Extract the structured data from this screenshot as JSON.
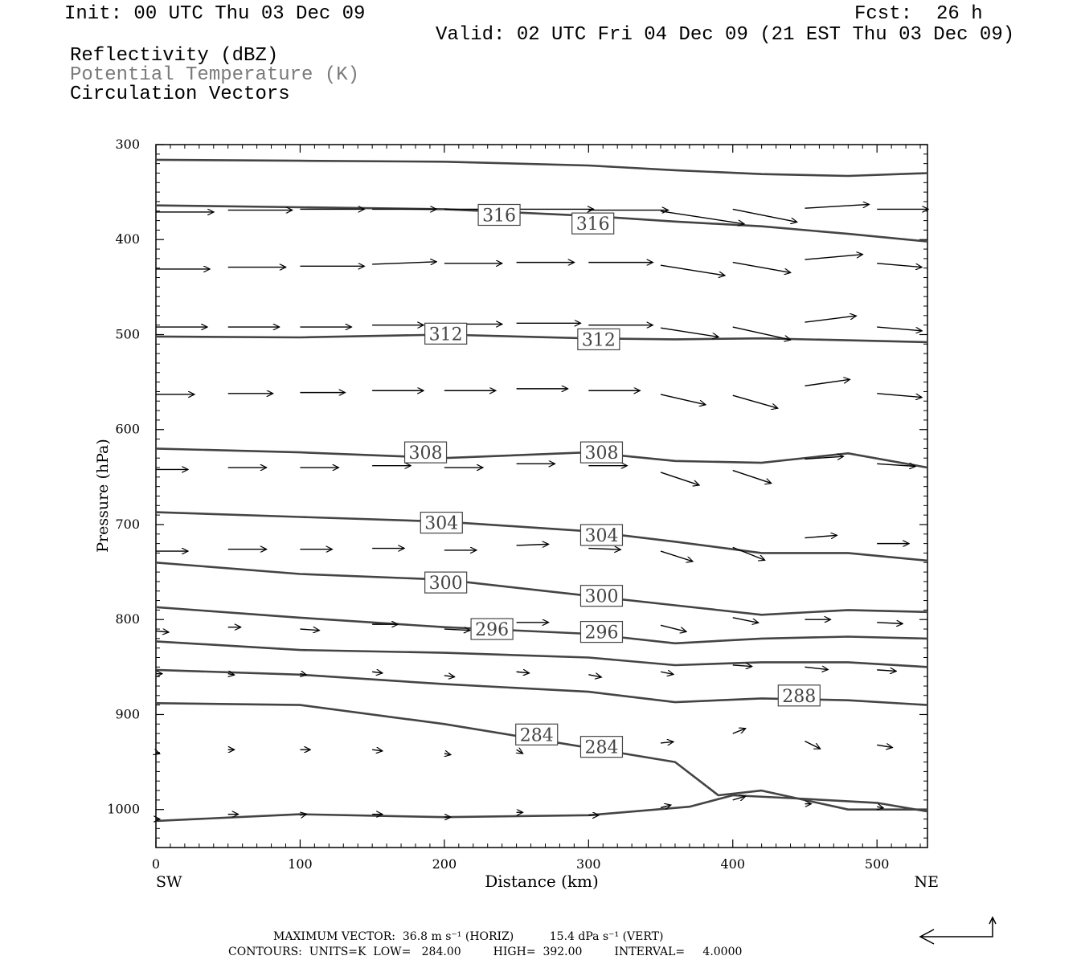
{
  "header": {
    "init": "Init: 00 UTC Thu 03 Dec 09",
    "fcst_label": "Fcst:",
    "fcst_value": "26 h",
    "valid": "Valid: 02 UTC Fri 04 Dec 09 (21 EST Thu 03 Dec 09)",
    "fields": [
      {
        "text": "Reflectivity (dBZ)",
        "color": "#000000"
      },
      {
        "text": "Potential Temperature (K)",
        "color": "#7a7a7a"
      },
      {
        "text": "Circulation Vectors",
        "color": "#000000"
      }
    ]
  },
  "chart_data": {
    "type": "line",
    "title": "",
    "xlabel": "Distance (km)",
    "ylabel": "Pressure (hPa)",
    "xlim": [
      0,
      535
    ],
    "ylim": [
      1040,
      300
    ],
    "y_scale": "linear",
    "grid": false,
    "x_ticks": [
      0,
      100,
      200,
      300,
      400,
      500
    ],
    "y_ticks": [
      300,
      400,
      500,
      600,
      700,
      800,
      900,
      1000
    ],
    "x_tick_labels": [
      "0",
      "100",
      "200",
      "300",
      "400",
      "500"
    ],
    "y_tick_labels": [
      "300",
      "400",
      "500",
      "600",
      "700",
      "800",
      "900",
      "1000"
    ],
    "x_end_labels": {
      "left": "SW",
      "right": "NE"
    },
    "series": [
      {
        "name": "theta",
        "color": "#444444",
        "x": [
          0,
          100,
          200,
          300,
          360,
          420,
          480,
          535
        ],
        "y": [
          316,
          317,
          318,
          322,
          327,
          331,
          333,
          330
        ]
      },
      {
        "name": "theta",
        "color": "#444444",
        "x": [
          0,
          100,
          200,
          300,
          360,
          420,
          480,
          535
        ],
        "y": [
          364,
          366,
          368,
          375,
          381,
          386,
          394,
          402
        ]
      },
      {
        "name": "theta",
        "color": "#444444",
        "x": [
          0,
          100,
          200,
          300,
          360,
          420,
          480,
          535
        ],
        "y": [
          502,
          503,
          500,
          504,
          505,
          504,
          506,
          508
        ]
      },
      {
        "name": "theta",
        "color": "#444444",
        "x": [
          0,
          100,
          200,
          300,
          360,
          420,
          480,
          535
        ],
        "y": [
          620,
          624,
          630,
          624,
          633,
          635,
          625,
          640
        ]
      },
      {
        "name": "theta",
        "color": "#444444",
        "x": [
          0,
          100,
          200,
          300,
          360,
          420,
          480,
          535
        ],
        "y": [
          687,
          692,
          697,
          707,
          718,
          730,
          730,
          738
        ]
      },
      {
        "name": "theta",
        "color": "#444444",
        "x": [
          0,
          100,
          200,
          300,
          360,
          420,
          480,
          535
        ],
        "y": [
          740,
          752,
          758,
          775,
          785,
          795,
          790,
          792
        ]
      },
      {
        "name": "theta",
        "color": "#444444",
        "x": [
          0,
          100,
          200,
          300,
          360,
          420,
          480,
          535
        ],
        "y": [
          787,
          798,
          808,
          815,
          825,
          820,
          818,
          820
        ]
      },
      {
        "name": "theta",
        "color": "#444444",
        "x": [
          0,
          100,
          200,
          300,
          360,
          420,
          480,
          535
        ],
        "y": [
          823,
          832,
          835,
          840,
          848,
          845,
          845,
          850
        ]
      },
      {
        "name": "theta",
        "color": "#444444",
        "x": [
          0,
          100,
          200,
          300,
          360,
          420,
          480,
          535
        ],
        "y": [
          853,
          858,
          868,
          876,
          887,
          883,
          885,
          890
        ]
      },
      {
        "name": "theta",
        "color": "#444444",
        "x": [
          0,
          100,
          200,
          300,
          360,
          390,
          420,
          480,
          535
        ],
        "y": [
          888,
          890,
          910,
          935,
          950,
          985,
          980,
          1000,
          1000
        ]
      },
      {
        "name": "theta",
        "color": "#444444",
        "x": [
          0,
          100,
          200,
          300,
          370,
          400,
          440,
          500,
          535
        ],
        "y": [
          1012,
          1005,
          1008,
          1006,
          997,
          985,
          988,
          993,
          1002
        ]
      }
    ],
    "contour_labels": [
      {
        "text": "316",
        "x": 238,
        "y": 374
      },
      {
        "text": "316",
        "x": 303,
        "y": 383
      },
      {
        "text": "312",
        "x": 201,
        "y": 499
      },
      {
        "text": "312",
        "x": 307,
        "y": 505
      },
      {
        "text": "308",
        "x": 187,
        "y": 624
      },
      {
        "text": "308",
        "x": 309,
        "y": 624
      },
      {
        "text": "304",
        "x": 198,
        "y": 698
      },
      {
        "text": "304",
        "x": 309,
        "y": 711
      },
      {
        "text": "300",
        "x": 201,
        "y": 761
      },
      {
        "text": "300",
        "x": 309,
        "y": 775
      },
      {
        "text": "296",
        "x": 233,
        "y": 810
      },
      {
        "text": "296",
        "x": 309,
        "y": 813
      },
      {
        "text": "288",
        "x": 446,
        "y": 880
      },
      {
        "text": "284",
        "x": 264,
        "y": 921
      },
      {
        "text": "284",
        "x": 309,
        "y": 934
      }
    ],
    "vectors": [
      {
        "x": 0,
        "y": 371,
        "u": 45,
        "w": 0
      },
      {
        "x": 50,
        "y": 369,
        "u": 50,
        "w": 0
      },
      {
        "x": 100,
        "y": 368,
        "u": 50,
        "w": 0
      },
      {
        "x": 150,
        "y": 368,
        "u": 50,
        "w": 0
      },
      {
        "x": 200,
        "y": 368,
        "u": 55,
        "w": 0
      },
      {
        "x": 250,
        "y": 368,
        "u": 60,
        "w": 0
      },
      {
        "x": 300,
        "y": 369,
        "u": 62,
        "w": 0
      },
      {
        "x": 350,
        "y": 370,
        "u": 65,
        "w": -10
      },
      {
        "x": 400,
        "y": 368,
        "u": 50,
        "w": -10
      },
      {
        "x": 450,
        "y": 367,
        "u": 50,
        "w": 3
      },
      {
        "x": 500,
        "y": 368,
        "u": 40,
        "w": 0
      },
      {
        "x": 0,
        "y": 431,
        "u": 42,
        "w": 0
      },
      {
        "x": 50,
        "y": 429,
        "u": 45,
        "w": 0
      },
      {
        "x": 100,
        "y": 428,
        "u": 50,
        "w": 0
      },
      {
        "x": 150,
        "y": 426,
        "u": 50,
        "w": 2
      },
      {
        "x": 200,
        "y": 425,
        "u": 45,
        "w": 0
      },
      {
        "x": 250,
        "y": 424,
        "u": 45,
        "w": 0
      },
      {
        "x": 300,
        "y": 424,
        "u": 50,
        "w": 0
      },
      {
        "x": 350,
        "y": 427,
        "u": 50,
        "w": -8
      },
      {
        "x": 400,
        "y": 424,
        "u": 45,
        "w": -8
      },
      {
        "x": 450,
        "y": 421,
        "u": 45,
        "w": 4
      },
      {
        "x": 500,
        "y": 425,
        "u": 35,
        "w": -3
      },
      {
        "x": 0,
        "y": 492,
        "u": 40,
        "w": 0
      },
      {
        "x": 50,
        "y": 492,
        "u": 40,
        "w": 0
      },
      {
        "x": 100,
        "y": 492,
        "u": 40,
        "w": 0
      },
      {
        "x": 150,
        "y": 490,
        "u": 40,
        "w": 0
      },
      {
        "x": 200,
        "y": 489,
        "u": 45,
        "w": 0
      },
      {
        "x": 250,
        "y": 488,
        "u": 50,
        "w": 0
      },
      {
        "x": 300,
        "y": 490,
        "u": 50,
        "w": 0
      },
      {
        "x": 350,
        "y": 493,
        "u": 45,
        "w": -7
      },
      {
        "x": 400,
        "y": 492,
        "u": 45,
        "w": -10
      },
      {
        "x": 450,
        "y": 487,
        "u": 40,
        "w": 5
      },
      {
        "x": 500,
        "y": 492,
        "u": 35,
        "w": -3
      },
      {
        "x": 0,
        "y": 563,
        "u": 30,
        "w": 0
      },
      {
        "x": 50,
        "y": 562,
        "u": 35,
        "w": 0
      },
      {
        "x": 100,
        "y": 561,
        "u": 35,
        "w": 0
      },
      {
        "x": 150,
        "y": 559,
        "u": 40,
        "w": 0
      },
      {
        "x": 200,
        "y": 559,
        "u": 40,
        "w": 0
      },
      {
        "x": 250,
        "y": 557,
        "u": 40,
        "w": 0
      },
      {
        "x": 300,
        "y": 559,
        "u": 40,
        "w": 0
      },
      {
        "x": 350,
        "y": 563,
        "u": 35,
        "w": -8
      },
      {
        "x": 400,
        "y": 564,
        "u": 35,
        "w": -10
      },
      {
        "x": 450,
        "y": 554,
        "u": 35,
        "w": 5
      },
      {
        "x": 500,
        "y": 562,
        "u": 35,
        "w": -3
      },
      {
        "x": 0,
        "y": 642,
        "u": 25,
        "w": 0
      },
      {
        "x": 50,
        "y": 640,
        "u": 30,
        "w": 0
      },
      {
        "x": 100,
        "y": 640,
        "u": 30,
        "w": 0
      },
      {
        "x": 150,
        "y": 638,
        "u": 30,
        "w": 0
      },
      {
        "x": 200,
        "y": 640,
        "u": 30,
        "w": 0
      },
      {
        "x": 250,
        "y": 636,
        "u": 30,
        "w": 0
      },
      {
        "x": 300,
        "y": 638,
        "u": 30,
        "w": 0
      },
      {
        "x": 350,
        "y": 645,
        "u": 30,
        "w": -10
      },
      {
        "x": 400,
        "y": 643,
        "u": 30,
        "w": -10
      },
      {
        "x": 450,
        "y": 631,
        "u": 30,
        "w": 2
      },
      {
        "x": 500,
        "y": 636,
        "u": 30,
        "w": -2
      },
      {
        "x": 0,
        "y": 728,
        "u": 25,
        "w": 0
      },
      {
        "x": 50,
        "y": 726,
        "u": 30,
        "w": 0
      },
      {
        "x": 100,
        "y": 726,
        "u": 25,
        "w": 0
      },
      {
        "x": 150,
        "y": 725,
        "u": 25,
        "w": 0
      },
      {
        "x": 200,
        "y": 727,
        "u": 25,
        "w": 0
      },
      {
        "x": 250,
        "y": 722,
        "u": 25,
        "w": 1
      },
      {
        "x": 300,
        "y": 725,
        "u": 25,
        "w": -1
      },
      {
        "x": 350,
        "y": 728,
        "u": 25,
        "w": -8
      },
      {
        "x": 400,
        "y": 724,
        "u": 25,
        "w": -10
      },
      {
        "x": 450,
        "y": 714,
        "u": 25,
        "w": 2
      },
      {
        "x": 500,
        "y": 720,
        "u": 25,
        "w": 0
      },
      {
        "x": 0,
        "y": 812,
        "u": 10,
        "w": -1
      },
      {
        "x": 50,
        "y": 808,
        "u": 10,
        "w": 0
      },
      {
        "x": 100,
        "y": 810,
        "u": 15,
        "w": -1
      },
      {
        "x": 150,
        "y": 805,
        "u": 20,
        "w": 0
      },
      {
        "x": 200,
        "y": 810,
        "u": 20,
        "w": -1
      },
      {
        "x": 250,
        "y": 803,
        "u": 25,
        "w": 0
      },
      {
        "x": 300,
        "y": 806,
        "u": 20,
        "w": -1
      },
      {
        "x": 350,
        "y": 806,
        "u": 20,
        "w": -5
      },
      {
        "x": 400,
        "y": 798,
        "u": 20,
        "w": -4
      },
      {
        "x": 450,
        "y": 800,
        "u": 20,
        "w": 0
      },
      {
        "x": 500,
        "y": 803,
        "u": 20,
        "w": -1
      },
      {
        "x": 0,
        "y": 857,
        "u": 5,
        "w": 0
      },
      {
        "x": 50,
        "y": 857,
        "u": 5,
        "w": -1
      },
      {
        "x": 100,
        "y": 857,
        "u": 5,
        "w": -1
      },
      {
        "x": 150,
        "y": 855,
        "u": 8,
        "w": -1
      },
      {
        "x": 200,
        "y": 859,
        "u": 8,
        "w": -1
      },
      {
        "x": 250,
        "y": 855,
        "u": 10,
        "w": -1
      },
      {
        "x": 300,
        "y": 858,
        "u": 10,
        "w": -2
      },
      {
        "x": 350,
        "y": 855,
        "u": 10,
        "w": -2
      },
      {
        "x": 400,
        "y": 848,
        "u": 15,
        "w": -1
      },
      {
        "x": 450,
        "y": 850,
        "u": 18,
        "w": -2
      },
      {
        "x": 500,
        "y": 853,
        "u": 15,
        "w": -1
      },
      {
        "x": 0,
        "y": 940,
        "u": 3,
        "w": -1
      },
      {
        "x": 50,
        "y": 937,
        "u": 5,
        "w": 0
      },
      {
        "x": 100,
        "y": 937,
        "u": 8,
        "w": 0
      },
      {
        "x": 150,
        "y": 937,
        "u": 8,
        "w": -1
      },
      {
        "x": 200,
        "y": 941,
        "u": 5,
        "w": -1
      },
      {
        "x": 250,
        "y": 937,
        "u": 5,
        "w": -3
      },
      {
        "x": 300,
        "y": 937,
        "u": 10,
        "w": -2
      },
      {
        "x": 350,
        "y": 930,
        "u": 10,
        "w": 1
      },
      {
        "x": 400,
        "y": 920,
        "u": 10,
        "w": 4
      },
      {
        "x": 450,
        "y": 928,
        "u": 12,
        "w": -6
      },
      {
        "x": 500,
        "y": 932,
        "u": 12,
        "w": -2
      },
      {
        "x": 0,
        "y": 1010,
        "u": 3,
        "w": 0
      },
      {
        "x": 50,
        "y": 1005,
        "u": 8,
        "w": 0
      },
      {
        "x": 100,
        "y": 1006,
        "u": 5,
        "w": 1
      },
      {
        "x": 150,
        "y": 1005,
        "u": 8,
        "w": 0
      },
      {
        "x": 200,
        "y": 1008,
        "u": 5,
        "w": 0
      },
      {
        "x": 250,
        "y": 1003,
        "u": 5,
        "w": 0
      },
      {
        "x": 300,
        "y": 1006,
        "u": 8,
        "w": 0
      },
      {
        "x": 350,
        "y": 998,
        "u": 8,
        "w": 2
      },
      {
        "x": 400,
        "y": 990,
        "u": 10,
        "w": 3
      },
      {
        "x": 450,
        "y": 994,
        "u": 5,
        "w": 0
      },
      {
        "x": 500,
        "y": 997,
        "u": 5,
        "w": -1
      }
    ]
  },
  "footer": {
    "max_vector": "MAXIMUM VECTOR:  36.8 m s⁻¹ (HORIZ)          15.4 dPa s⁻¹ (VERT)",
    "contours": "CONTOURS:  UNITS=K  LOW=   284.00         HIGH=  392.00         INTERVAL=     4.0000"
  }
}
